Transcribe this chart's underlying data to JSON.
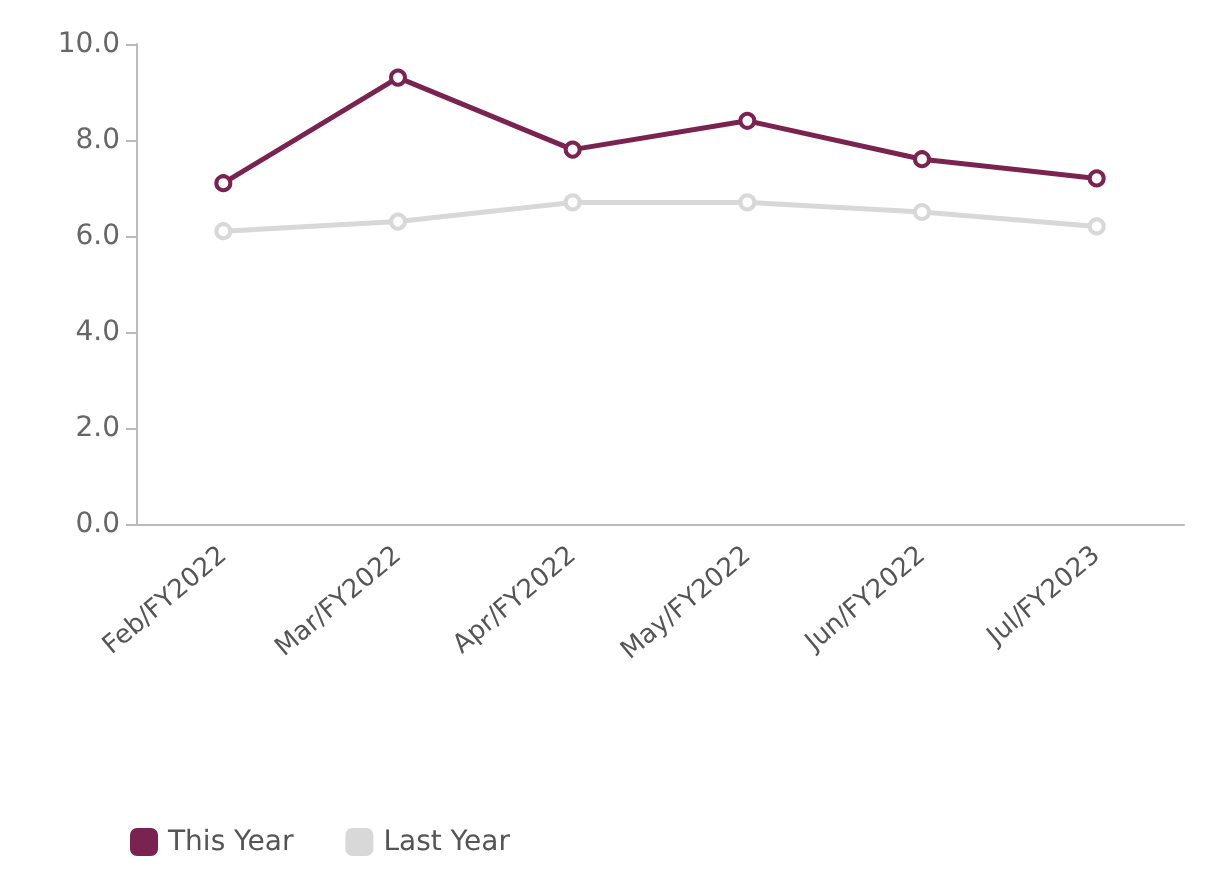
{
  "chart_data": {
    "type": "line",
    "categories": [
      "Feb/FY2022",
      "Mar/FY2022",
      "Apr/FY2022",
      "May/FY2022",
      "Jun/FY2022",
      "Jul/FY2023"
    ],
    "series": [
      {
        "name": "This Year",
        "color": "#7b2350",
        "values": [
          7.1,
          9.3,
          7.8,
          8.4,
          7.6,
          7.2
        ]
      },
      {
        "name": "Last Year",
        "color": "#d8d8d8",
        "values": [
          6.1,
          6.3,
          6.7,
          6.7,
          6.5,
          6.2
        ]
      }
    ],
    "ylim": [
      0,
      10
    ],
    "yticks": [
      {
        "value": 0,
        "label": "0.0"
      },
      {
        "value": 2,
        "label": "2.0"
      },
      {
        "value": 4,
        "label": "4.0"
      },
      {
        "value": 6,
        "label": "6.0"
      },
      {
        "value": 8,
        "label": "8.0"
      },
      {
        "value": 10,
        "label": "10.0"
      }
    ],
    "grid": false,
    "legend": "bottom left",
    "marker": "circle",
    "line_style": "solid"
  }
}
